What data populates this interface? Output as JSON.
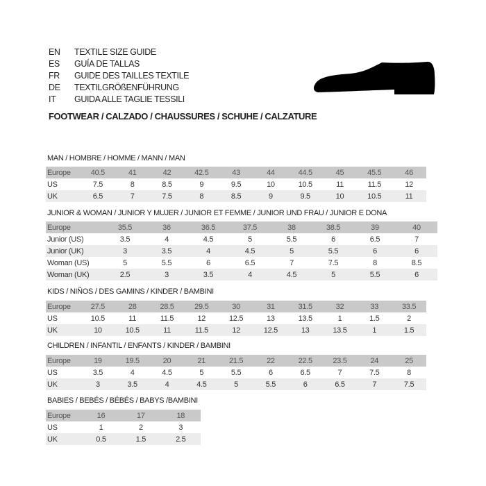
{
  "header": {
    "languages": [
      {
        "code": "EN",
        "title": "TEXTILE SIZE GUIDE"
      },
      {
        "code": "ES",
        "title": "GUÍA DE TALLAS"
      },
      {
        "code": "FR",
        "title": "GUIDE DES TAILLES TEXTILE"
      },
      {
        "code": "DE",
        "title": "TEXTILGRÖßENFÜHRUNG"
      },
      {
        "code": "IT",
        "title": "GUIDA ALLE TAGLIE TESSILI"
      }
    ],
    "footwear": "FOOTWEAR / CALZADO / CHAUSSURES / SCHUHE / CALZATURE",
    "icon": "shoe-icon"
  },
  "sections": [
    {
      "title": "MAN / HOMBRE / HOMME / MANN / MAN",
      "rows": [
        [
          "Europe",
          "40.5",
          "41",
          "42",
          "42.5",
          "43",
          "44",
          "44.5",
          "45",
          "45.5",
          "46"
        ],
        [
          "US",
          "7.5",
          "8",
          "8.5",
          "9",
          "9.5",
          "10",
          "10.5",
          "11",
          "11.5",
          "12"
        ],
        [
          "UK",
          "6.5",
          "7",
          "7.5",
          "8",
          "8.5",
          "9",
          "9.5",
          "10",
          "10.5",
          "11"
        ]
      ]
    },
    {
      "title": "JUNIOR & WOMAN / JUNIOR Y MUJER / JUNIOR ET FEMME / JUNIOR UND FRAU / JUNIOR E DONA",
      "rows": [
        [
          "Europe",
          "35.5",
          "36",
          "36.5",
          "37.5",
          "38",
          "38.5",
          "39",
          "40"
        ],
        [
          "Junior (US)",
          "3.5",
          "4",
          "4.5",
          "5",
          "5.5",
          "6",
          "6.5",
          "7"
        ],
        [
          "Junior (UK)",
          "3",
          "3.5",
          "4",
          "4.5",
          "5",
          "5.5",
          "6",
          "6"
        ],
        [
          "Woman (US)",
          "5",
          "5.5",
          "6",
          "6.5",
          "7",
          "7.5",
          "8",
          "8.5"
        ],
        [
          "Woman (UK)",
          "2.5",
          "3",
          "3.5",
          "4",
          "4.5",
          "5",
          "5.5",
          "6"
        ]
      ]
    },
    {
      "title": "KIDS / NIÑOS / DES GAMINS / KINDER / BAMBINI",
      "rows": [
        [
          "Europe",
          "27.5",
          "28",
          "28.5",
          "29.5",
          "30",
          "31",
          "31.5",
          "32",
          "33",
          "33.5"
        ],
        [
          "US",
          "10.5",
          "11",
          "11.5",
          "12",
          "12.5",
          "13",
          "13.5",
          "1",
          "1.5",
          "2"
        ],
        [
          "UK",
          "10",
          "10.5",
          "11",
          "11.5",
          "12",
          "12.5",
          "13",
          "13.5",
          "1",
          "1.5"
        ]
      ]
    },
    {
      "title": "CHILDREN / INFANTIL / ENFANTS / KINDER / BAMBINI",
      "rows": [
        [
          "Europe",
          "19",
          "19.5",
          "20",
          "21",
          "21.5",
          "22",
          "22.5",
          "23.5",
          "24",
          "25"
        ],
        [
          "US",
          "3.5",
          "4",
          "4.5",
          "5",
          "5.5",
          "6",
          "6.5",
          "7",
          "7.5",
          "8"
        ],
        [
          "UK",
          "3",
          "3.5",
          "4",
          "4.5",
          "5",
          "5.5",
          "6",
          "6.5",
          "7",
          "7.5"
        ]
      ]
    },
    {
      "title": "BABIES  / BEBÉS / BÉBÉS / BABYS /BAMBINI",
      "rows": [
        [
          "Europe",
          "16",
          "17",
          "18"
        ],
        [
          "US",
          "1",
          "2",
          "3"
        ],
        [
          "UK",
          "0.5",
          "1.5",
          "2.5"
        ]
      ]
    }
  ]
}
